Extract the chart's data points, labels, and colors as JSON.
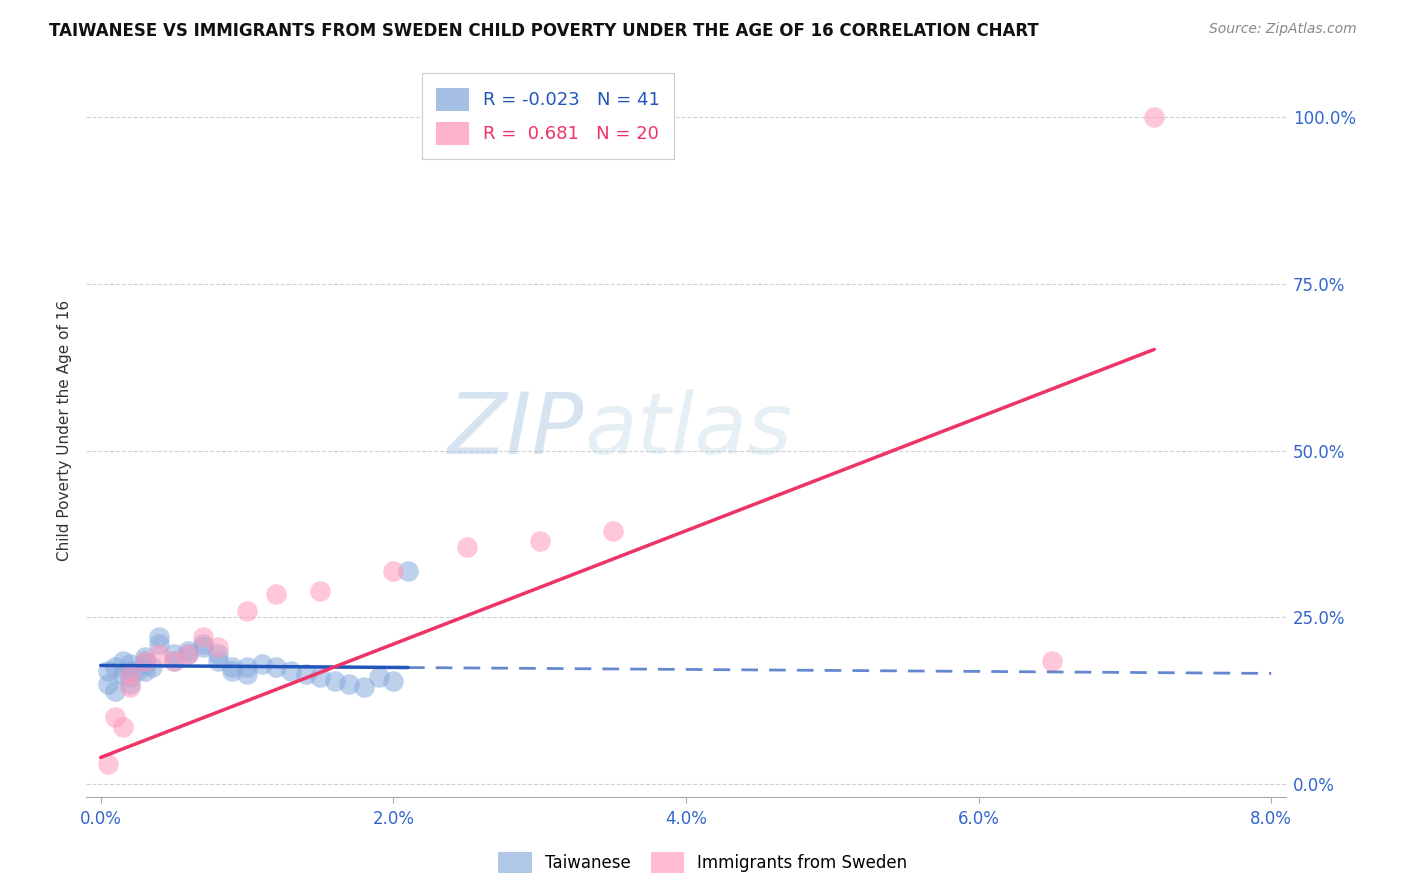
{
  "title": "TAIWANESE VS IMMIGRANTS FROM SWEDEN CHILD POVERTY UNDER THE AGE OF 16 CORRELATION CHART",
  "source": "Source: ZipAtlas.com",
  "ylabel": "Child Poverty Under the Age of 16",
  "xlim": [
    -0.001,
    0.081
  ],
  "ylim": [
    -0.02,
    1.08
  ],
  "xticks": [
    0.0,
    0.02,
    0.04,
    0.06,
    0.08
  ],
  "xtick_labels": [
    "0.0%",
    "2.0%",
    "4.0%",
    "6.0%",
    "8.0%"
  ],
  "yticks": [
    0.0,
    0.25,
    0.5,
    0.75,
    1.0
  ],
  "ytick_labels": [
    "0.0%",
    "25.0%",
    "50.0%",
    "75.0%",
    "100.0%"
  ],
  "blue_color": "#88AADD",
  "pink_color": "#FF99BB",
  "blue_line_color": "#2255BB",
  "pink_line_color": "#EE3366",
  "blue_R": -0.023,
  "blue_N": 41,
  "pink_R": 0.681,
  "pink_N": 20,
  "taiwanese_x": [
    0.0005,
    0.0005,
    0.001,
    0.001,
    0.0015,
    0.0015,
    0.002,
    0.002,
    0.002,
    0.002,
    0.0025,
    0.003,
    0.003,
    0.003,
    0.003,
    0.0035,
    0.004,
    0.004,
    0.005,
    0.005,
    0.006,
    0.006,
    0.007,
    0.007,
    0.008,
    0.008,
    0.009,
    0.009,
    0.01,
    0.01,
    0.011,
    0.012,
    0.013,
    0.014,
    0.015,
    0.016,
    0.017,
    0.018,
    0.019,
    0.02,
    0.021
  ],
  "taiwanese_y": [
    0.17,
    0.15,
    0.175,
    0.14,
    0.185,
    0.165,
    0.18,
    0.17,
    0.16,
    0.15,
    0.17,
    0.19,
    0.185,
    0.18,
    0.17,
    0.175,
    0.22,
    0.21,
    0.195,
    0.185,
    0.2,
    0.195,
    0.21,
    0.205,
    0.195,
    0.185,
    0.175,
    0.17,
    0.165,
    0.175,
    0.18,
    0.175,
    0.17,
    0.165,
    0.16,
    0.155,
    0.15,
    0.145,
    0.16,
    0.155,
    0.32
  ],
  "sweden_x": [
    0.0005,
    0.001,
    0.0015,
    0.002,
    0.002,
    0.003,
    0.004,
    0.005,
    0.006,
    0.007,
    0.008,
    0.01,
    0.012,
    0.015,
    0.02,
    0.025,
    0.03,
    0.035,
    0.065,
    0.072
  ],
  "sweden_y": [
    0.03,
    0.1,
    0.085,
    0.145,
    0.165,
    0.185,
    0.195,
    0.185,
    0.195,
    0.22,
    0.205,
    0.26,
    0.285,
    0.29,
    0.32,
    0.355,
    0.365,
    0.38,
    0.185,
    1.0
  ],
  "watermark_zip": "ZIP",
  "watermark_atlas": "atlas",
  "background_color": "#ffffff",
  "grid_color": "#cccccc"
}
